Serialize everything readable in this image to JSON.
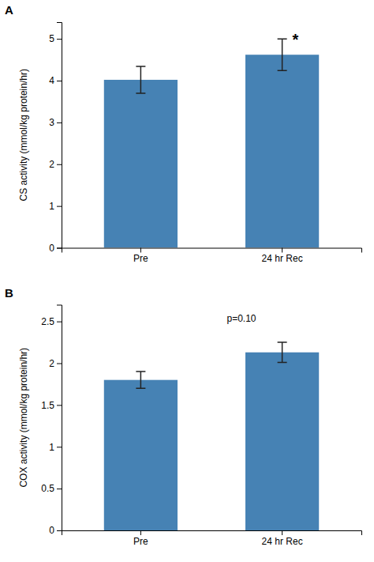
{
  "chart_data": [
    {
      "type": "bar",
      "title": "A",
      "categories": [
        "Pre",
        "24 hr Rec"
      ],
      "values": [
        4.02,
        4.62
      ],
      "errors": [
        0.32,
        0.38
      ],
      "ylabel": "CS activity (mmol/kg protein/hr)",
      "ylim": [
        0,
        5.4
      ],
      "yticks": [
        0,
        1,
        2,
        3,
        4,
        5
      ],
      "annotation": "*",
      "grid": false
    },
    {
      "type": "bar",
      "title": "B",
      "categories": [
        "Pre",
        "24 hr Rec"
      ],
      "values": [
        1.8,
        2.13
      ],
      "errors": [
        0.1,
        0.12
      ],
      "ylabel": "COX activity (mmol/kg protein/hr)",
      "ylim": [
        0,
        2.7
      ],
      "yticks": [
        0,
        0.5,
        1,
        1.5,
        2,
        2.5
      ],
      "annotation": "p=0.10",
      "grid": false
    }
  ]
}
